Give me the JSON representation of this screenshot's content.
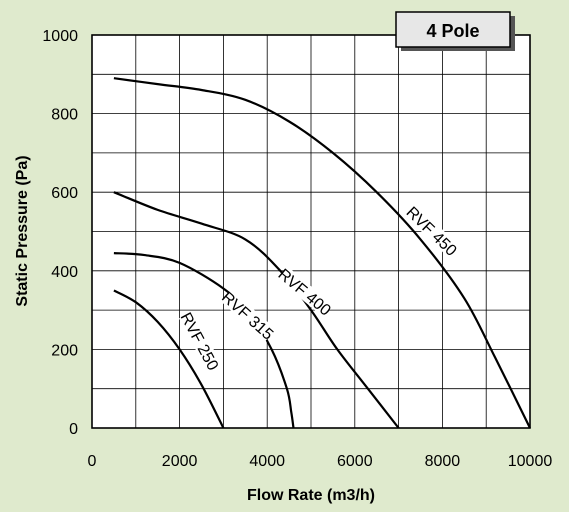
{
  "chart_data": {
    "type": "line",
    "badge": "4 Pole",
    "xlabel": "Flow Rate (m3/h)",
    "ylabel": "Static Pressure (Pa)",
    "xlim": [
      0,
      10000
    ],
    "ylim": [
      0,
      1000
    ],
    "xticks": [
      0,
      2000,
      4000,
      6000,
      8000,
      10000
    ],
    "yticks": [
      0,
      200,
      400,
      600,
      800,
      1000
    ],
    "grid": true,
    "series": [
      {
        "name": "RVF 250",
        "points": [
          [
            500,
            350
          ],
          [
            1000,
            320
          ],
          [
            1500,
            270
          ],
          [
            2000,
            200
          ],
          [
            2500,
            110
          ],
          [
            3000,
            0
          ]
        ]
      },
      {
        "name": "RVF 315",
        "points": [
          [
            500,
            445
          ],
          [
            1200,
            440
          ],
          [
            2000,
            420
          ],
          [
            3000,
            355
          ],
          [
            3600,
            290
          ],
          [
            4100,
            200
          ],
          [
            4450,
            100
          ],
          [
            4550,
            40
          ],
          [
            4600,
            0
          ]
        ]
      },
      {
        "name": "RVF 400",
        "points": [
          [
            500,
            600
          ],
          [
            1500,
            555
          ],
          [
            2500,
            520
          ],
          [
            3500,
            480
          ],
          [
            4300,
            400
          ],
          [
            5000,
            300
          ],
          [
            5600,
            200
          ],
          [
            6300,
            100
          ],
          [
            7000,
            0
          ]
        ]
      },
      {
        "name": "RVF 450",
        "points": [
          [
            500,
            890
          ],
          [
            1500,
            875
          ],
          [
            2500,
            860
          ],
          [
            3500,
            835
          ],
          [
            4500,
            780
          ],
          [
            5500,
            700
          ],
          [
            6500,
            600
          ],
          [
            7500,
            480
          ],
          [
            8500,
            330
          ],
          [
            9200,
            180
          ],
          [
            10000,
            0
          ]
        ]
      }
    ]
  }
}
